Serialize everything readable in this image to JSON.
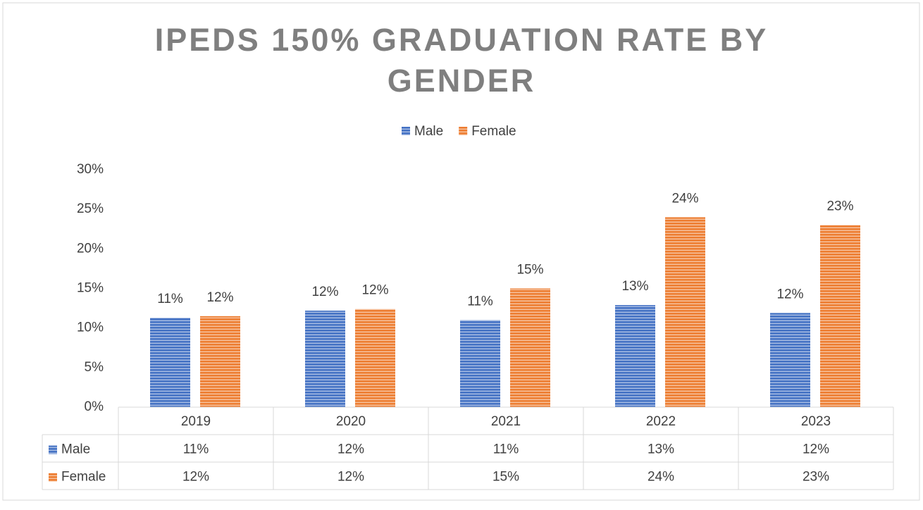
{
  "chart_data": {
    "type": "bar",
    "title": "IPEDS 150% GRADUATION RATE BY GENDER",
    "categories": [
      "2019",
      "2020",
      "2021",
      "2022",
      "2023"
    ],
    "series": [
      {
        "name": "Male",
        "color": "#4472c4",
        "values": [
          11.3,
          12.2,
          11.0,
          12.9,
          11.9
        ],
        "value_labels": [
          "11%",
          "12%",
          "11%",
          "13%",
          "12%"
        ]
      },
      {
        "name": "Female",
        "color": "#ed7d31",
        "values": [
          11.5,
          12.4,
          15.0,
          24.0,
          23.0
        ],
        "value_labels": [
          "12%",
          "12%",
          "15%",
          "24%",
          "23%"
        ]
      }
    ],
    "ylim": [
      0,
      30
    ],
    "yticks": [
      {
        "value": 0,
        "label": "0%"
      },
      {
        "value": 5,
        "label": "5%"
      },
      {
        "value": 10,
        "label": "10%"
      },
      {
        "value": 15,
        "label": "15%"
      },
      {
        "value": 20,
        "label": "20%"
      },
      {
        "value": 25,
        "label": "25%"
      },
      {
        "value": 30,
        "label": "30%"
      }
    ],
    "grid": false,
    "legend": "top",
    "data_table": true
  }
}
